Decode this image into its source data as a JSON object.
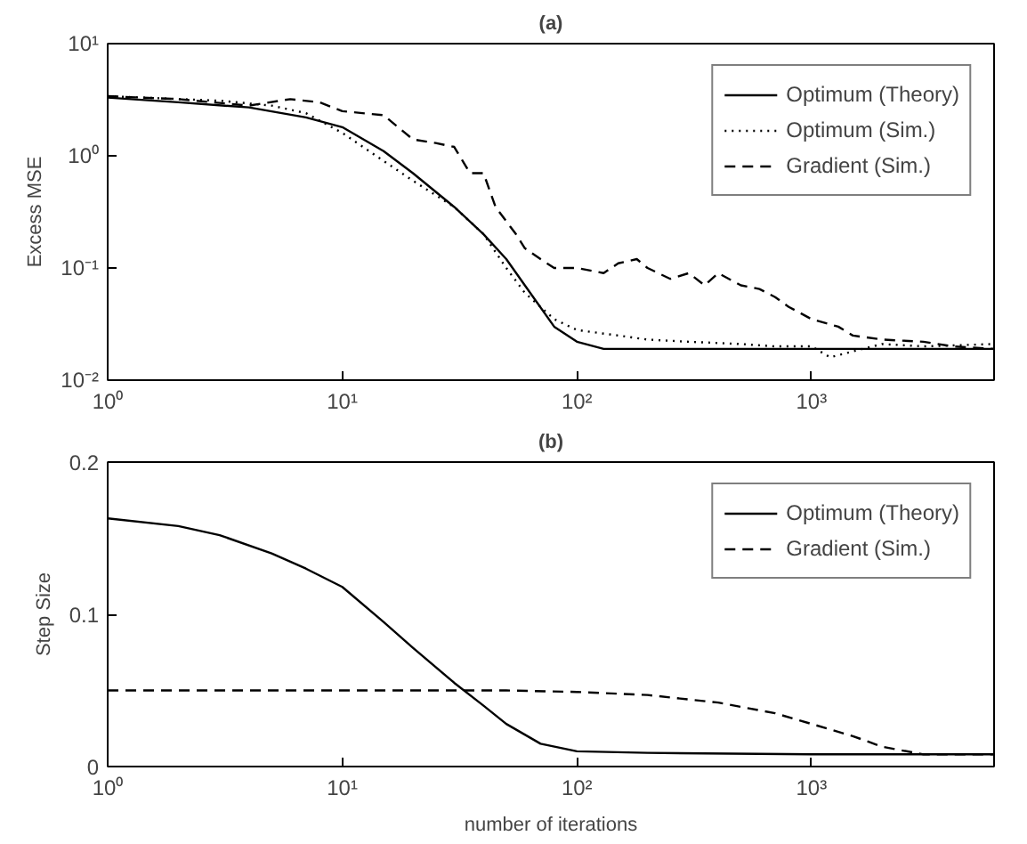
{
  "chart_data": [
    {
      "type": "line",
      "title": "(a)",
      "ylabel": "Excess MSE",
      "log": "xy",
      "legend": "top right",
      "xlim": [
        1,
        6000
      ],
      "ylim": [
        0.01,
        10
      ],
      "xticks": [
        {
          "value": 1,
          "label": "10⁰"
        },
        {
          "value": 10,
          "label": "10¹"
        },
        {
          "value": 100,
          "label": "10²"
        },
        {
          "value": 1000,
          "label": "10³"
        }
      ],
      "yticks": [
        {
          "value": 0.01,
          "label": "10⁻²"
        },
        {
          "value": 0.1,
          "label": "10⁻¹"
        },
        {
          "value": 1,
          "label": "10⁰"
        },
        {
          "value": 10,
          "label": "10¹"
        }
      ],
      "series": [
        {
          "name": "Optimum (Theory)",
          "color": "#000000",
          "line_style": "solid",
          "x": [
            1,
            2,
            4,
            7,
            10,
            15,
            20,
            30,
            40,
            50,
            60,
            80,
            100,
            130,
            6000
          ],
          "values": [
            3.3,
            3.0,
            2.7,
            2.2,
            1.8,
            1.1,
            0.7,
            0.35,
            0.2,
            0.12,
            0.07,
            0.03,
            0.022,
            0.019,
            0.019
          ]
        },
        {
          "name": "Optimum (Sim.)",
          "color": "#000000",
          "line_style": "dotted",
          "x": [
            1,
            3,
            5,
            7,
            10,
            15,
            20,
            30,
            40,
            50,
            60,
            80,
            100,
            150,
            200,
            300,
            500,
            700,
            1000,
            1200,
            2000,
            3000,
            6000
          ],
          "values": [
            3.4,
            3.1,
            2.8,
            2.4,
            1.6,
            0.9,
            0.6,
            0.35,
            0.2,
            0.1,
            0.06,
            0.035,
            0.028,
            0.025,
            0.023,
            0.022,
            0.021,
            0.02,
            0.02,
            0.016,
            0.021,
            0.02,
            0.021
          ]
        },
        {
          "name": "Gradient (Sim.)",
          "color": "#000000",
          "line_style": "dashed",
          "x": [
            1,
            2,
            4,
            6,
            8,
            10,
            15,
            20,
            25,
            30,
            35,
            40,
            45,
            55,
            60,
            70,
            80,
            100,
            130,
            150,
            180,
            200,
            250,
            300,
            350,
            400,
            500,
            600,
            700,
            800,
            1000,
            1300,
            1500,
            2000,
            3000,
            4000,
            6000
          ],
          "values": [
            3.4,
            3.2,
            2.8,
            3.2,
            3.0,
            2.5,
            2.3,
            1.4,
            1.3,
            1.2,
            0.7,
            0.7,
            0.35,
            0.2,
            0.15,
            0.12,
            0.1,
            0.1,
            0.09,
            0.11,
            0.12,
            0.1,
            0.08,
            0.09,
            0.07,
            0.09,
            0.07,
            0.065,
            0.055,
            0.045,
            0.035,
            0.03,
            0.025,
            0.023,
            0.022,
            0.02,
            0.019
          ]
        }
      ]
    },
    {
      "type": "line",
      "title": "(b)",
      "xlabel": "number of iterations",
      "ylabel": "Step Size",
      "log": "x",
      "legend": "top right",
      "xlim": [
        1,
        6000
      ],
      "ylim": [
        0,
        0.2
      ],
      "xticks": [
        {
          "value": 1,
          "label": "10⁰"
        },
        {
          "value": 10,
          "label": "10¹"
        },
        {
          "value": 100,
          "label": "10²"
        },
        {
          "value": 1000,
          "label": "10³"
        }
      ],
      "yticks": [
        0,
        0.1,
        0.2
      ],
      "series": [
        {
          "name": "Optimum (Theory)",
          "color": "#000000",
          "line_style": "solid",
          "x": [
            1,
            2,
            3,
            5,
            7,
            10,
            15,
            20,
            30,
            40,
            50,
            70,
            100,
            200,
            1000,
            6000
          ],
          "values": [
            0.163,
            0.158,
            0.152,
            0.14,
            0.13,
            0.118,
            0.095,
            0.078,
            0.055,
            0.04,
            0.028,
            0.015,
            0.01,
            0.009,
            0.008,
            0.008
          ]
        },
        {
          "name": "Gradient (Sim.)",
          "color": "#000000",
          "line_style": "dashed",
          "x": [
            1,
            50,
            100,
            200,
            400,
            700,
            1000,
            1500,
            2000,
            3000,
            6000
          ],
          "values": [
            0.05,
            0.05,
            0.049,
            0.047,
            0.042,
            0.035,
            0.028,
            0.02,
            0.013,
            0.008,
            0.008
          ]
        }
      ]
    }
  ]
}
